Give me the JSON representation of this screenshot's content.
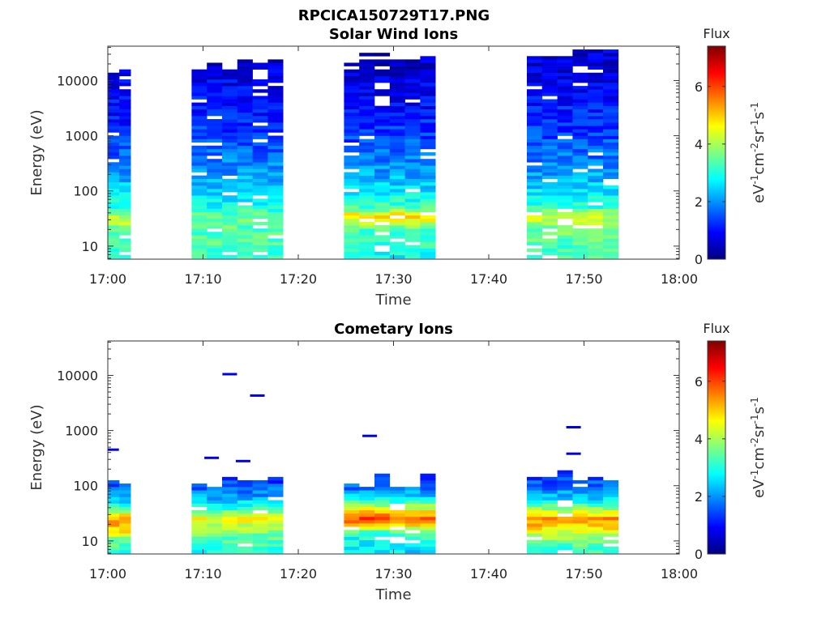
{
  "figure": {
    "title": "RPCICA150729T17.PNG"
  },
  "colormap": [
    "#00007f",
    "#0000ff",
    "#007fff",
    "#00ffff",
    "#7fff7f",
    "#ffff00",
    "#ff7f00",
    "#ff0000",
    "#7f0000"
  ],
  "chart_data": [
    {
      "type": "heatmap",
      "title": "Solar Wind Ions",
      "xlabel": "Time",
      "ylabel": "Energy (eV)",
      "x_ticks": [
        "17:00",
        "17:10",
        "17:20",
        "17:30",
        "17:40",
        "17:50",
        "18:00"
      ],
      "xlim_minutes": [
        0,
        60
      ],
      "y_scale": "log",
      "y_ticks": [
        "10",
        "100",
        "1000",
        "10000"
      ],
      "ylim": [
        5.8,
        42000
      ],
      "colorbar": {
        "title": "Flux",
        "label": "eV-1cm-2sr-1s-1",
        "ticks": [
          "0",
          "2",
          "4",
          "6"
        ],
        "range": [
          0,
          7.4
        ]
      },
      "blocks": [
        {
          "start_min": 0.0,
          "end_min": 2.4,
          "n_cols": 2,
          "emax": 15000,
          "profile": [
            [
              6,
              3.0
            ],
            [
              10,
              3.2
            ],
            [
              20,
              3.4
            ],
            [
              30,
              4.4
            ],
            [
              45,
              3.1
            ],
            [
              100,
              2.6
            ],
            [
              300,
              1.8
            ],
            [
              1000,
              1.3
            ],
            [
              3000,
              1.0
            ],
            [
              10000,
              0.8
            ],
            [
              15000,
              0.6
            ]
          ]
        },
        {
          "start_min": 8.8,
          "end_min": 18.4,
          "n_cols": 6,
          "emax": 23000,
          "profile": [
            [
              6,
              3.2
            ],
            [
              10,
              3.3
            ],
            [
              20,
              3.4
            ],
            [
              35,
              3.6
            ],
            [
              50,
              2.9
            ],
            [
              100,
              2.5
            ],
            [
              300,
              1.9
            ],
            [
              1000,
              1.4
            ],
            [
              3000,
              1.1
            ],
            [
              10000,
              0.8
            ],
            [
              23000,
              0.5
            ]
          ]
        },
        {
          "start_min": 24.8,
          "end_min": 34.4,
          "n_cols": 6,
          "emax": 30000,
          "profile": [
            [
              6,
              2.8
            ],
            [
              10,
              3.0
            ],
            [
              20,
              3.3
            ],
            [
              35,
              5.0
            ],
            [
              50,
              3.3
            ],
            [
              100,
              2.6
            ],
            [
              300,
              1.9
            ],
            [
              1000,
              1.4
            ],
            [
              3000,
              1.0
            ],
            [
              10000,
              0.7
            ],
            [
              30000,
              0.5
            ]
          ]
        },
        {
          "start_min": 44.0,
          "end_min": 53.6,
          "n_cols": 6,
          "emax": 37000,
          "profile": [
            [
              6,
              3.2
            ],
            [
              10,
              3.3
            ],
            [
              20,
              3.6
            ],
            [
              35,
              4.4
            ],
            [
              50,
              3.1
            ],
            [
              100,
              2.6
            ],
            [
              300,
              1.9
            ],
            [
              1000,
              1.4
            ],
            [
              3000,
              1.1
            ],
            [
              10000,
              0.8
            ],
            [
              37000,
              0.6
            ]
          ]
        }
      ]
    },
    {
      "type": "heatmap",
      "title": "Cometary Ions",
      "xlabel": "Time",
      "ylabel": "Energy (eV)",
      "x_ticks": [
        "17:00",
        "17:10",
        "17:20",
        "17:30",
        "17:40",
        "17:50",
        "18:00"
      ],
      "xlim_minutes": [
        0,
        60
      ],
      "y_scale": "log",
      "y_ticks": [
        "10",
        "100",
        "1000",
        "10000"
      ],
      "ylim": [
        5.8,
        42000
      ],
      "colorbar": {
        "title": "Flux",
        "label": "eV-1cm-2sr-1s-1",
        "ticks": [
          "0",
          "2",
          "4",
          "6"
        ],
        "range": [
          0,
          7.4
        ]
      },
      "blocks": [
        {
          "start_min": 0.0,
          "end_min": 2.4,
          "n_cols": 2,
          "emax": 130,
          "profile": [
            [
              6,
              3.0
            ],
            [
              10,
              3.5
            ],
            [
              15,
              4.8
            ],
            [
              25,
              5.4
            ],
            [
              40,
              3.2
            ],
            [
              60,
              2.2
            ],
            [
              100,
              1.4
            ],
            [
              130,
              1.1
            ]
          ]
        },
        {
          "start_min": 8.8,
          "end_min": 18.4,
          "n_cols": 6,
          "emax": 150,
          "profile": [
            [
              6,
              3.0
            ],
            [
              10,
              3.3
            ],
            [
              15,
              3.8
            ],
            [
              25,
              4.6
            ],
            [
              40,
              3.0
            ],
            [
              60,
              2.2
            ],
            [
              100,
              1.5
            ],
            [
              150,
              1.2
            ]
          ]
        },
        {
          "start_min": 24.8,
          "end_min": 34.4,
          "n_cols": 6,
          "emax": 150,
          "profile": [
            [
              6,
              2.5
            ],
            [
              10,
              2.8
            ],
            [
              15,
              3.4
            ],
            [
              25,
              6.0
            ],
            [
              40,
              4.2
            ],
            [
              60,
              2.6
            ],
            [
              100,
              1.6
            ],
            [
              150,
              1.3
            ]
          ]
        },
        {
          "start_min": 44.0,
          "end_min": 53.6,
          "n_cols": 6,
          "emax": 170,
          "profile": [
            [
              6,
              3.0
            ],
            [
              10,
              3.6
            ],
            [
              15,
              4.5
            ],
            [
              25,
              5.6
            ],
            [
              40,
              3.6
            ],
            [
              60,
              2.4
            ],
            [
              100,
              1.6
            ],
            [
              170,
              1.4
            ]
          ]
        }
      ],
      "sparse_points": [
        {
          "t_min": 0.4,
          "energy": 450
        },
        {
          "t_min": 12.8,
          "energy": 10500
        },
        {
          "t_min": 15.7,
          "energy": 4300
        },
        {
          "t_min": 27.5,
          "energy": 800
        },
        {
          "t_min": 48.9,
          "energy": 1150
        },
        {
          "t_min": 48.9,
          "energy": 380
        },
        {
          "t_min": 10.9,
          "energy": 320
        },
        {
          "t_min": 14.2,
          "energy": 280
        }
      ]
    }
  ]
}
